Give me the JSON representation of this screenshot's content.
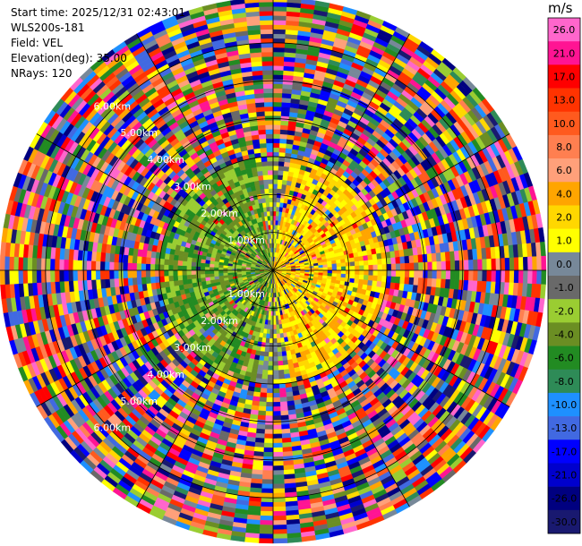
{
  "info": {
    "start_time": "Start time: 2025/12/31 02:43:01",
    "instrument": "WLS200s-181",
    "field": "Field: VEL",
    "elevation": "Elevation(deg): 35.00",
    "nrays": "NRays: 120"
  },
  "chart_data": {
    "type": "heatmap",
    "projection": "polar (PPI)",
    "field": "VEL",
    "units": "m/s",
    "nrays": 120,
    "elevation_deg": 35.0,
    "range_rings": [
      {
        "label": "1.00km",
        "km": 1
      },
      {
        "label": "2.00km",
        "km": 2
      },
      {
        "label": "3.00km",
        "km": 3
      },
      {
        "label": "4.00km",
        "km": 4
      },
      {
        "label": "5.00km",
        "km": 5
      },
      {
        "label": "6.00km",
        "km": 6
      }
    ],
    "max_range_km": 7.2,
    "colorbar": {
      "title": "m/s",
      "ticks": [
        "26.0",
        "21.0",
        "17.0",
        "13.0",
        "10.0",
        "8.0",
        "6.0",
        "4.0",
        "2.0",
        "1.0",
        "0.0",
        "-1.0",
        "-2.0",
        "-4.0",
        "-6.0",
        "-8.0",
        "-10.0",
        "-13.0",
        "-17.0",
        "-21.0",
        "-26.0",
        "-30.0"
      ],
      "colors": [
        "#ff66cc",
        "#ff1493",
        "#ff0000",
        "#ff3300",
        "#ff5a1e",
        "#ff7f50",
        "#ffa07a",
        "#ffa500",
        "#ffd700",
        "#ffff00",
        "#778899",
        "#696969",
        "#9acd32",
        "#6b8e23",
        "#228b22",
        "#2e8b57",
        "#1e90ff",
        "#4169e1",
        "#0000ff",
        "#0000cd",
        "#000080",
        "#191970"
      ]
    }
  }
}
